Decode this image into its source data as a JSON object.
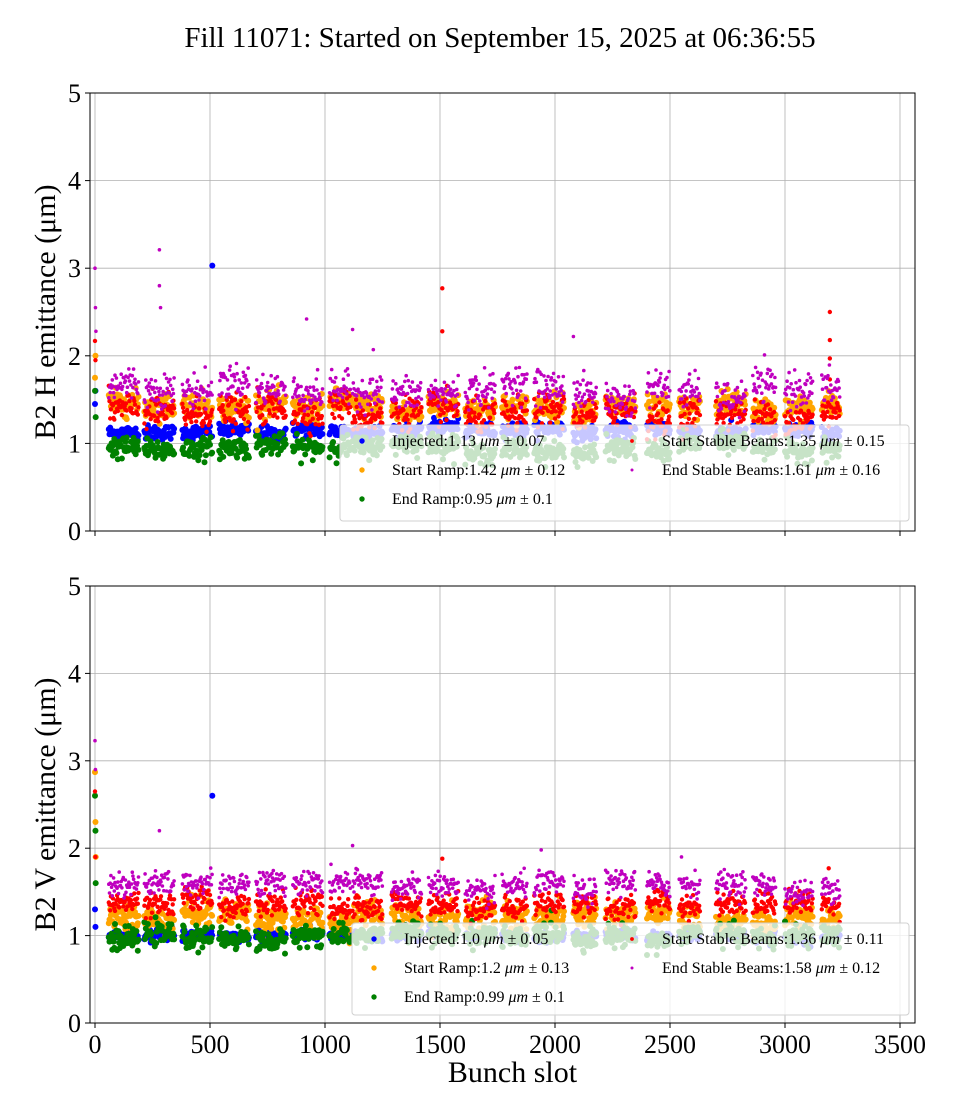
{
  "chart_data": {
    "title": "Fill 11071: Started on September 15, 2025 at 06:36:55",
    "xlabel": "Bunch slot",
    "xlim": [
      -20,
      3550
    ],
    "xticks": [
      "0",
      "500",
      "1000",
      "1500",
      "2000",
      "2500",
      "3000",
      "3500"
    ],
    "yticks": [
      "0",
      "1",
      "2",
      "3",
      "4",
      "5"
    ],
    "grid": true,
    "colors": {
      "Injected": "#0000ff",
      "Start Ramp": "#ffa500",
      "End Ramp": "#008000",
      "Start Stable Beams": "#ff0000",
      "End Stable Beams": "#bf00bf"
    },
    "trains": [
      [
        60,
        190
      ],
      [
        215,
        345
      ],
      [
        380,
        510
      ],
      [
        540,
        670
      ],
      [
        700,
        830
      ],
      [
        860,
        990
      ],
      [
        1020,
        1110
      ],
      [
        1120,
        1250
      ],
      [
        1290,
        1420
      ],
      [
        1450,
        1580
      ],
      [
        1610,
        1740
      ],
      [
        1770,
        1880
      ],
      [
        1910,
        2040
      ],
      [
        2080,
        2180
      ],
      [
        2220,
        2350
      ],
      [
        2400,
        2500
      ],
      [
        2540,
        2630
      ],
      [
        2700,
        2830
      ],
      [
        2860,
        2960
      ],
      [
        3000,
        3120
      ],
      [
        3160,
        3240
      ]
    ],
    "panels": [
      {
        "type": "scatter",
        "ylabel": "B2 H emittance (μm)",
        "ylim": [
          0,
          5
        ],
        "legend_position": "lower-right",
        "series": [
          {
            "name": "Injected",
            "mean": 1.13,
            "std": 0.07,
            "legend_value": "1.13",
            "legend_err": "0.07",
            "outliers": [
              [
                510,
                3.03
              ],
              [
                0,
                1.45
              ],
              [
                2,
                1.6
              ]
            ]
          },
          {
            "name": "Start Ramp",
            "mean": 1.42,
            "std": 0.12,
            "legend_value": "1.42",
            "legend_err": "0.12",
            "outliers": [
              [
                0,
                1.75
              ],
              [
                2,
                2.0
              ]
            ]
          },
          {
            "name": "End Ramp",
            "mean": 0.95,
            "std": 0.1,
            "legend_value": "0.95",
            "legend_err": "0.1",
            "outliers": [
              [
                0,
                1.6
              ],
              [
                3,
                1.3
              ]
            ]
          },
          {
            "name": "Start Stable Beams",
            "mean": 1.35,
            "std": 0.15,
            "legend_value": "1.35",
            "legend_err": "0.15",
            "outliers": [
              [
                0,
                2.17
              ],
              [
                2,
                1.95
              ],
              [
                1510,
                2.77
              ],
              [
                1510,
                2.28
              ],
              [
                3195,
                2.5
              ],
              [
                3195,
                2.18
              ],
              [
                3195,
                1.97
              ],
              [
                3195,
                1.73
              ]
            ]
          },
          {
            "name": "End Stable Beams",
            "mean": 1.61,
            "std": 0.16,
            "legend_value": "1.61",
            "legend_err": "0.16",
            "outliers": [
              [
                0,
                3.0
              ],
              [
                2,
                2.55
              ],
              [
                4,
                2.28
              ],
              [
                280,
                3.21
              ],
              [
                280,
                2.8
              ],
              [
                285,
                2.55
              ],
              [
                920,
                2.42
              ],
              [
                1120,
                2.3
              ],
              [
                1210,
                2.07
              ],
              [
                2080,
                2.22
              ]
            ]
          }
        ]
      },
      {
        "type": "scatter",
        "ylabel": "B2 V emittance (μm)",
        "ylim": [
          0,
          5
        ],
        "legend_position": "lower-right",
        "series": [
          {
            "name": "Injected",
            "mean": 1.0,
            "std": 0.05,
            "legend_value": "1.0",
            "legend_err": "0.05",
            "outliers": [
              [
                510,
                2.6
              ],
              [
                0,
                1.3
              ],
              [
                2,
                1.1
              ]
            ]
          },
          {
            "name": "Start Ramp",
            "mean": 1.2,
            "std": 0.13,
            "legend_value": "1.2",
            "legend_err": "0.13",
            "outliers": [
              [
                0,
                2.87
              ],
              [
                2,
                2.3
              ],
              [
                3,
                1.9
              ]
            ]
          },
          {
            "name": "End Ramp",
            "mean": 0.99,
            "std": 0.1,
            "legend_value": "0.99",
            "legend_err": "0.1",
            "outliers": [
              [
                0,
                2.6
              ],
              [
                2,
                2.2
              ],
              [
                3,
                1.6
              ]
            ]
          },
          {
            "name": "Start Stable Beams",
            "mean": 1.36,
            "std": 0.11,
            "legend_value": "1.36",
            "legend_err": "0.11",
            "outliers": [
              [
                0,
                2.65
              ],
              [
                2,
                1.9
              ],
              [
                1510,
                1.88
              ],
              [
                3190,
                1.77
              ]
            ]
          },
          {
            "name": "End Stable Beams",
            "mean": 1.58,
            "std": 0.12,
            "legend_value": "1.58",
            "legend_err": "0.12",
            "outliers": [
              [
                0,
                3.23
              ],
              [
                2,
                2.9
              ],
              [
                280,
                2.2
              ],
              [
                1120,
                2.03
              ],
              [
                1940,
                1.98
              ],
              [
                2550,
                1.9
              ]
            ]
          }
        ]
      }
    ],
    "legend_unit": "μm",
    "legend_pm": "±"
  }
}
